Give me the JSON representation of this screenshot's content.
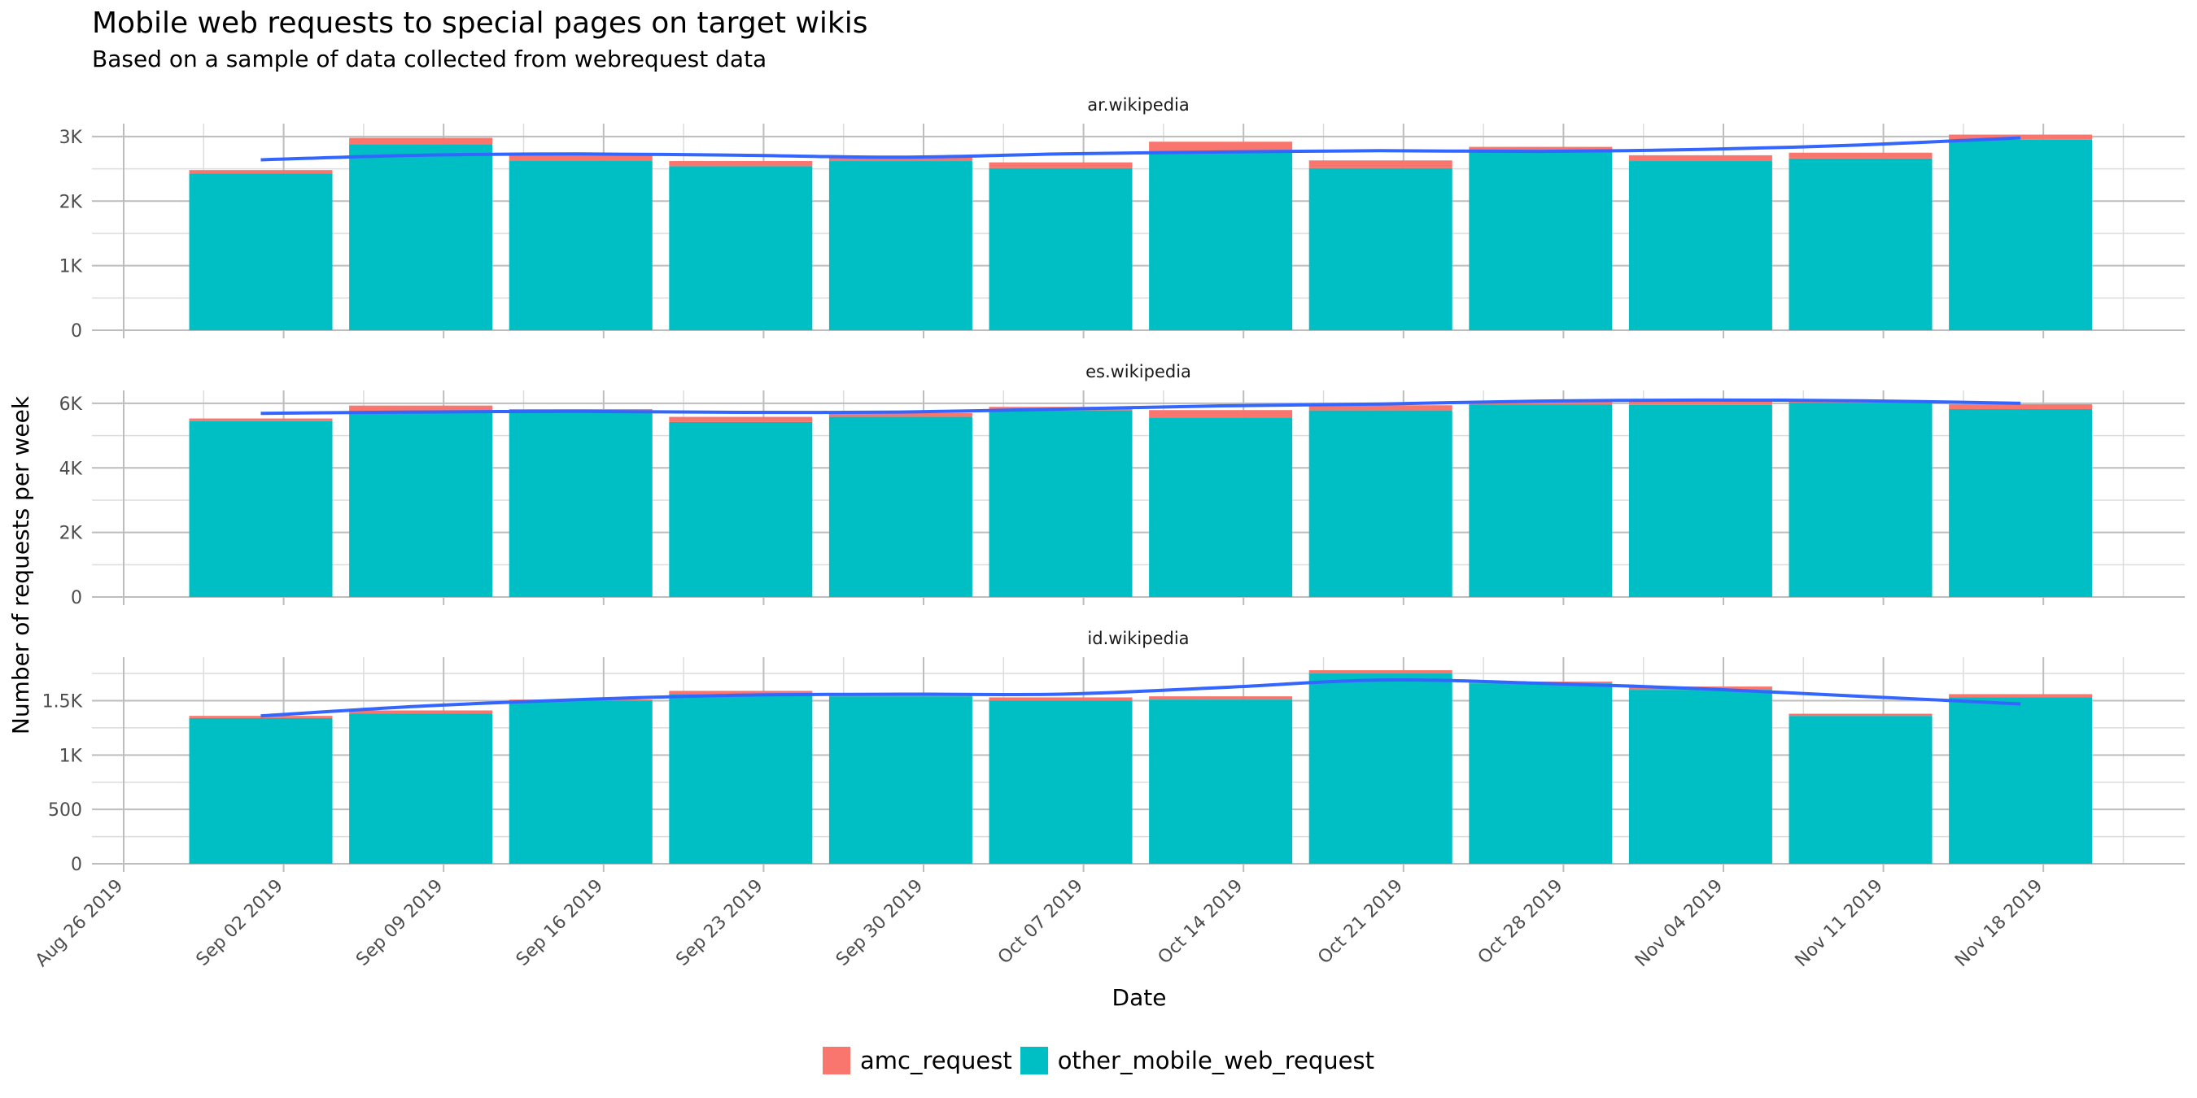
{
  "header": {
    "title": "Mobile web requests to special pages on target wikis",
    "subtitle": "Based on a sample of data collected from webrequest data"
  },
  "colors": {
    "amc_request": "#F8766D",
    "other_mobile_web_request": "#00BFC4",
    "trend_line": "#3366FF",
    "grid_major": "#bdbdbd",
    "grid_minor": "#dcdcdc"
  },
  "chart_data": {
    "type": "bar",
    "stacked": true,
    "trend_line": "smooth",
    "xlabel": "Date",
    "ylabel": "Number of requests per week",
    "x_ticks": [
      "Aug 26 2019",
      "Sep 02 2019",
      "Sep 09 2019",
      "Sep 16 2019",
      "Sep 23 2019",
      "Sep 30 2019",
      "Oct 07 2019",
      "Oct 14 2019",
      "Oct 21 2019",
      "Oct 28 2019",
      "Nov 04 2019",
      "Nov 11 2019",
      "Nov 18 2019"
    ],
    "bar_dates": [
      "2019-09-01",
      "2019-09-08",
      "2019-09-15",
      "2019-09-22",
      "2019-09-29",
      "2019-10-06",
      "2019-10-13",
      "2019-10-20",
      "2019-10-27",
      "2019-11-03",
      "2019-11-10",
      "2019-11-17"
    ],
    "legend": [
      "amc_request",
      "other_mobile_web_request"
    ],
    "legend_position": "bottom",
    "panels": [
      {
        "facet": "ar.wikipedia",
        "ylim": [
          0,
          3200
        ],
        "y_ticks": [
          0,
          1000,
          2000,
          3000
        ],
        "y_tick_labels": [
          "0",
          "1K",
          "2K",
          "3K"
        ],
        "series": [
          {
            "name": "amc_request",
            "values": [
              50,
              100,
              80,
              80,
              70,
              90,
              150,
              120,
              80,
              90,
              90,
              80
            ]
          },
          {
            "name": "other_mobile_web_request",
            "values": [
              2430,
              2880,
              2630,
              2540,
              2620,
              2510,
              2770,
              2510,
              2760,
              2620,
              2660,
              2950
            ]
          }
        ],
        "trend": [
          2640,
          2710,
          2730,
          2710,
          2680,
          2730,
          2760,
          2780,
          2770,
          2800,
          2870,
          2980
        ]
      },
      {
        "facet": "es.wikipedia",
        "ylim": [
          0,
          6400
        ],
        "y_ticks": [
          0,
          2000,
          4000,
          6000
        ],
        "y_tick_labels": [
          "0",
          "2K",
          "4K",
          "6K"
        ],
        "series": [
          {
            "name": "amc_request",
            "values": [
              80,
              180,
              100,
              160,
              120,
              110,
              230,
              160,
              100,
              120,
              60,
              150
            ]
          },
          {
            "name": "other_mobile_web_request",
            "values": [
              5450,
              5750,
              5720,
              5420,
              5580,
              5780,
              5560,
              5780,
              5960,
              5950,
              6020,
              5820
            ]
          }
        ],
        "trend": [
          5690,
          5730,
          5750,
          5720,
          5730,
          5820,
          5920,
          5980,
          6070,
          6100,
          6080,
          6000
        ]
      },
      {
        "facet": "id.wikipedia",
        "ylim": [
          0,
          1900
        ],
        "y_ticks": [
          0,
          500,
          1000,
          1500
        ],
        "y_tick_labels": [
          "0",
          "500",
          "1K",
          "1.5K"
        ],
        "series": [
          {
            "name": "amc_request",
            "values": [
              20,
              30,
              10,
              30,
              15,
              30,
              30,
              30,
              15,
              30,
              20,
              30
            ]
          },
          {
            "name": "other_mobile_web_request",
            "values": [
              1340,
              1380,
              1500,
              1560,
              1540,
              1500,
              1510,
              1750,
              1660,
              1600,
              1360,
              1530
            ]
          }
        ],
        "trend": [
          1360,
          1450,
          1510,
          1550,
          1560,
          1560,
          1620,
          1690,
          1660,
          1610,
          1540,
          1470
        ]
      }
    ]
  }
}
